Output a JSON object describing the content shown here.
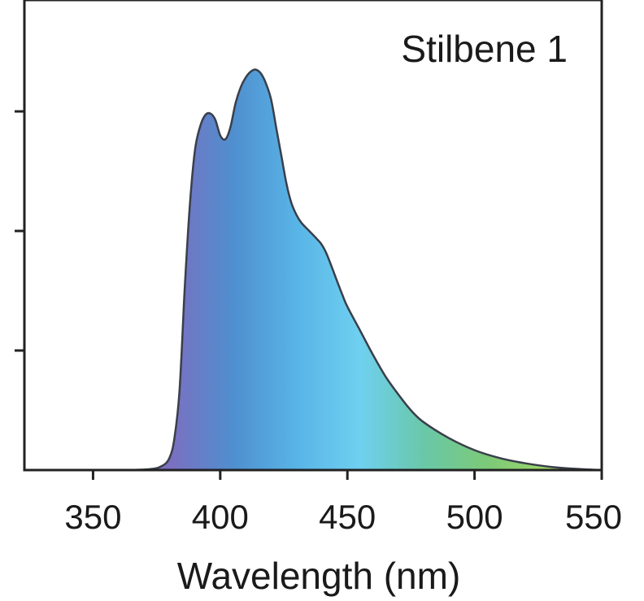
{
  "chart_data": {
    "type": "area",
    "legend": "Stilbene 1",
    "xlabel": "Wavelength (nm)",
    "xlim": [
      323,
      550
    ],
    "ylim": [
      0,
      1.0
    ],
    "x_ticks": [
      350,
      400,
      450,
      500,
      550
    ],
    "y_ticks": [
      0,
      0.3,
      0.6,
      0.9
    ],
    "y_tick_labels_shown": false,
    "grid": false,
    "legend_position": "top-right",
    "fill_gradient": [
      "#7b6fc0",
      "#4f8fcf",
      "#58b4e6",
      "#6fd0f0",
      "#69c8a8",
      "#7cc978",
      "#9ed86a"
    ],
    "series": [
      {
        "x": [
          323,
          360,
          372,
          377,
          380,
          382,
          384,
          386,
          388,
          390,
          392,
          394,
          396,
          398,
          400,
          402,
          404,
          406,
          408,
          410,
          412,
          414,
          416,
          418,
          420,
          422,
          424,
          426,
          428,
          430,
          432,
          435,
          438,
          440,
          442,
          445,
          448,
          450,
          455,
          460,
          465,
          470,
          475,
          480,
          490,
          500,
          510,
          520,
          530,
          540,
          550
        ],
        "y": [
          0,
          0,
          0.002,
          0.01,
          0.03,
          0.08,
          0.2,
          0.45,
          0.66,
          0.8,
          0.86,
          0.89,
          0.895,
          0.88,
          0.84,
          0.83,
          0.86,
          0.92,
          0.96,
          0.985,
          1.0,
          1.005,
          0.995,
          0.97,
          0.93,
          0.86,
          0.79,
          0.72,
          0.67,
          0.64,
          0.62,
          0.6,
          0.58,
          0.565,
          0.54,
          0.49,
          0.44,
          0.41,
          0.35,
          0.29,
          0.235,
          0.19,
          0.15,
          0.12,
          0.08,
          0.05,
          0.03,
          0.017,
          0.008,
          0.003,
          0.0
        ]
      }
    ]
  }
}
